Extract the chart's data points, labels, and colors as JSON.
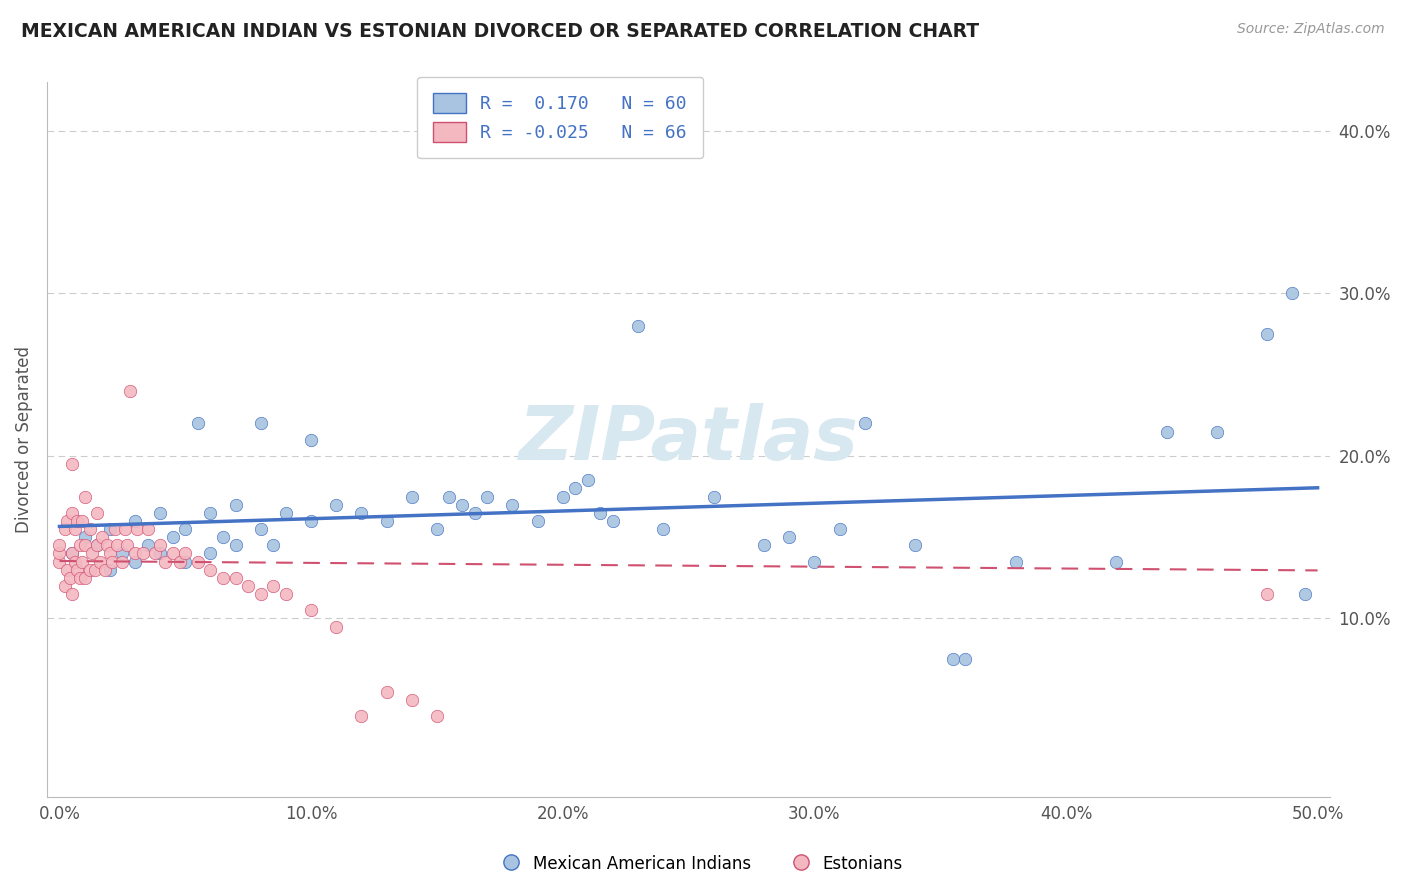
{
  "title": "MEXICAN AMERICAN INDIAN VS ESTONIAN DIVORCED OR SEPARATED CORRELATION CHART",
  "source_text": "Source: ZipAtlas.com",
  "ylabel": "Divorced or Separated",
  "xlabel": "",
  "x_ticks": [
    0.0,
    0.1,
    0.2,
    0.3,
    0.4,
    0.5
  ],
  "x_tick_labels": [
    "0.0%",
    "10.0%",
    "20.0%",
    "30.0%",
    "40.0%",
    "50.0%"
  ],
  "y_ticks_right": [
    0.1,
    0.2,
    0.3,
    0.4
  ],
  "y_tick_labels_right": [
    "10.0%",
    "20.0%",
    "30.0%",
    "40.0%"
  ],
  "xlim": [
    -0.005,
    0.505
  ],
  "ylim": [
    -0.01,
    0.43
  ],
  "R_blue": 0.17,
  "N_blue": 60,
  "R_pink": -0.025,
  "N_pink": 66,
  "blue_color": "#a8c4e0",
  "blue_line_color": "#4472c4",
  "pink_color": "#f4b8c1",
  "pink_line_color": "#d05070",
  "watermark_color": "#d8e8f0",
  "legend_label_blue": "Mexican American Indians",
  "legend_label_pink": "Estonians",
  "blue_scatter_x": [
    0.005,
    0.01,
    0.015,
    0.02,
    0.02,
    0.025,
    0.03,
    0.03,
    0.035,
    0.04,
    0.04,
    0.045,
    0.05,
    0.05,
    0.055,
    0.06,
    0.06,
    0.065,
    0.07,
    0.07,
    0.08,
    0.08,
    0.085,
    0.09,
    0.1,
    0.1,
    0.11,
    0.12,
    0.13,
    0.14,
    0.15,
    0.155,
    0.16,
    0.165,
    0.17,
    0.18,
    0.19,
    0.2,
    0.205,
    0.21,
    0.215,
    0.22,
    0.23,
    0.24,
    0.26,
    0.28,
    0.29,
    0.3,
    0.31,
    0.32,
    0.34,
    0.355,
    0.36,
    0.38,
    0.42,
    0.44,
    0.46,
    0.48,
    0.49,
    0.495
  ],
  "blue_scatter_y": [
    0.14,
    0.15,
    0.145,
    0.13,
    0.155,
    0.14,
    0.135,
    0.16,
    0.145,
    0.14,
    0.165,
    0.15,
    0.135,
    0.155,
    0.22,
    0.14,
    0.165,
    0.15,
    0.145,
    0.17,
    0.155,
    0.22,
    0.145,
    0.165,
    0.16,
    0.21,
    0.17,
    0.165,
    0.16,
    0.175,
    0.155,
    0.175,
    0.17,
    0.165,
    0.175,
    0.17,
    0.16,
    0.175,
    0.18,
    0.185,
    0.165,
    0.16,
    0.28,
    0.155,
    0.175,
    0.145,
    0.15,
    0.135,
    0.155,
    0.22,
    0.145,
    0.075,
    0.075,
    0.135,
    0.135,
    0.215,
    0.215,
    0.275,
    0.3,
    0.115
  ],
  "pink_scatter_x": [
    0.0,
    0.0,
    0.0,
    0.002,
    0.002,
    0.003,
    0.003,
    0.004,
    0.005,
    0.005,
    0.005,
    0.006,
    0.006,
    0.007,
    0.007,
    0.008,
    0.008,
    0.009,
    0.009,
    0.01,
    0.01,
    0.01,
    0.012,
    0.012,
    0.013,
    0.014,
    0.015,
    0.015,
    0.016,
    0.017,
    0.018,
    0.019,
    0.02,
    0.021,
    0.022,
    0.023,
    0.025,
    0.026,
    0.027,
    0.028,
    0.03,
    0.031,
    0.033,
    0.035,
    0.038,
    0.04,
    0.042,
    0.045,
    0.048,
    0.05,
    0.055,
    0.06,
    0.065,
    0.07,
    0.075,
    0.08,
    0.085,
    0.09,
    0.1,
    0.11,
    0.12,
    0.13,
    0.14,
    0.15,
    0.48,
    0.005
  ],
  "pink_scatter_y": [
    0.135,
    0.14,
    0.145,
    0.12,
    0.155,
    0.13,
    0.16,
    0.125,
    0.115,
    0.14,
    0.165,
    0.135,
    0.155,
    0.13,
    0.16,
    0.125,
    0.145,
    0.135,
    0.16,
    0.125,
    0.145,
    0.175,
    0.13,
    0.155,
    0.14,
    0.13,
    0.145,
    0.165,
    0.135,
    0.15,
    0.13,
    0.145,
    0.14,
    0.135,
    0.155,
    0.145,
    0.135,
    0.155,
    0.145,
    0.24,
    0.14,
    0.155,
    0.14,
    0.155,
    0.14,
    0.145,
    0.135,
    0.14,
    0.135,
    0.14,
    0.135,
    0.13,
    0.125,
    0.125,
    0.12,
    0.115,
    0.12,
    0.115,
    0.105,
    0.095,
    0.04,
    0.055,
    0.05,
    0.04,
    0.115,
    0.195
  ]
}
